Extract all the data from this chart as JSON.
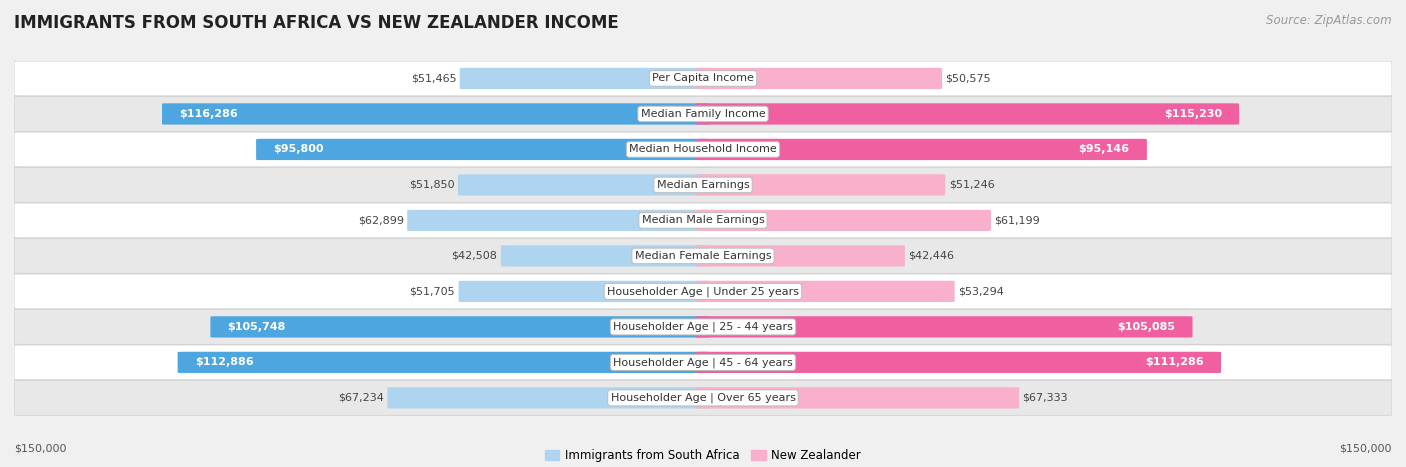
{
  "title": "IMMIGRANTS FROM SOUTH AFRICA VS NEW ZEALANDER INCOME",
  "source": "Source: ZipAtlas.com",
  "categories": [
    "Per Capita Income",
    "Median Family Income",
    "Median Household Income",
    "Median Earnings",
    "Median Male Earnings",
    "Median Female Earnings",
    "Householder Age | Under 25 years",
    "Householder Age | 25 - 44 years",
    "Householder Age | 45 - 64 years",
    "Householder Age | Over 65 years"
  ],
  "left_values": [
    51465,
    116286,
    95800,
    51850,
    62899,
    42508,
    51705,
    105748,
    112886,
    67234
  ],
  "right_values": [
    50575,
    115230,
    95146,
    51246,
    61199,
    42446,
    53294,
    105085,
    111286,
    67333
  ],
  "left_labels": [
    "$51,465",
    "$116,286",
    "$95,800",
    "$51,850",
    "$62,899",
    "$42,508",
    "$51,705",
    "$105,748",
    "$112,886",
    "$67,234"
  ],
  "right_labels": [
    "$50,575",
    "$115,230",
    "$95,146",
    "$51,246",
    "$61,199",
    "$42,446",
    "$53,294",
    "$105,085",
    "$111,286",
    "$67,333"
  ],
  "max_value": 150000,
  "left_color_strong": "#4da6e0",
  "left_color_light": "#aed4ef",
  "right_color_strong": "#f060a0",
  "right_color_light": "#f9b0cc",
  "inside_threshold": 75000,
  "bar_height": 0.58,
  "bg_color": "#f0f0f0",
  "row_bg_light": "#ffffff",
  "row_bg_dark": "#e8e8e8",
  "legend_left": "Immigrants from South Africa",
  "legend_right": "New Zealander",
  "x_label_left": "$150,000",
  "x_label_right": "$150,000",
  "title_fontsize": 12,
  "source_fontsize": 8.5,
  "label_fontsize": 8,
  "category_fontsize": 8
}
